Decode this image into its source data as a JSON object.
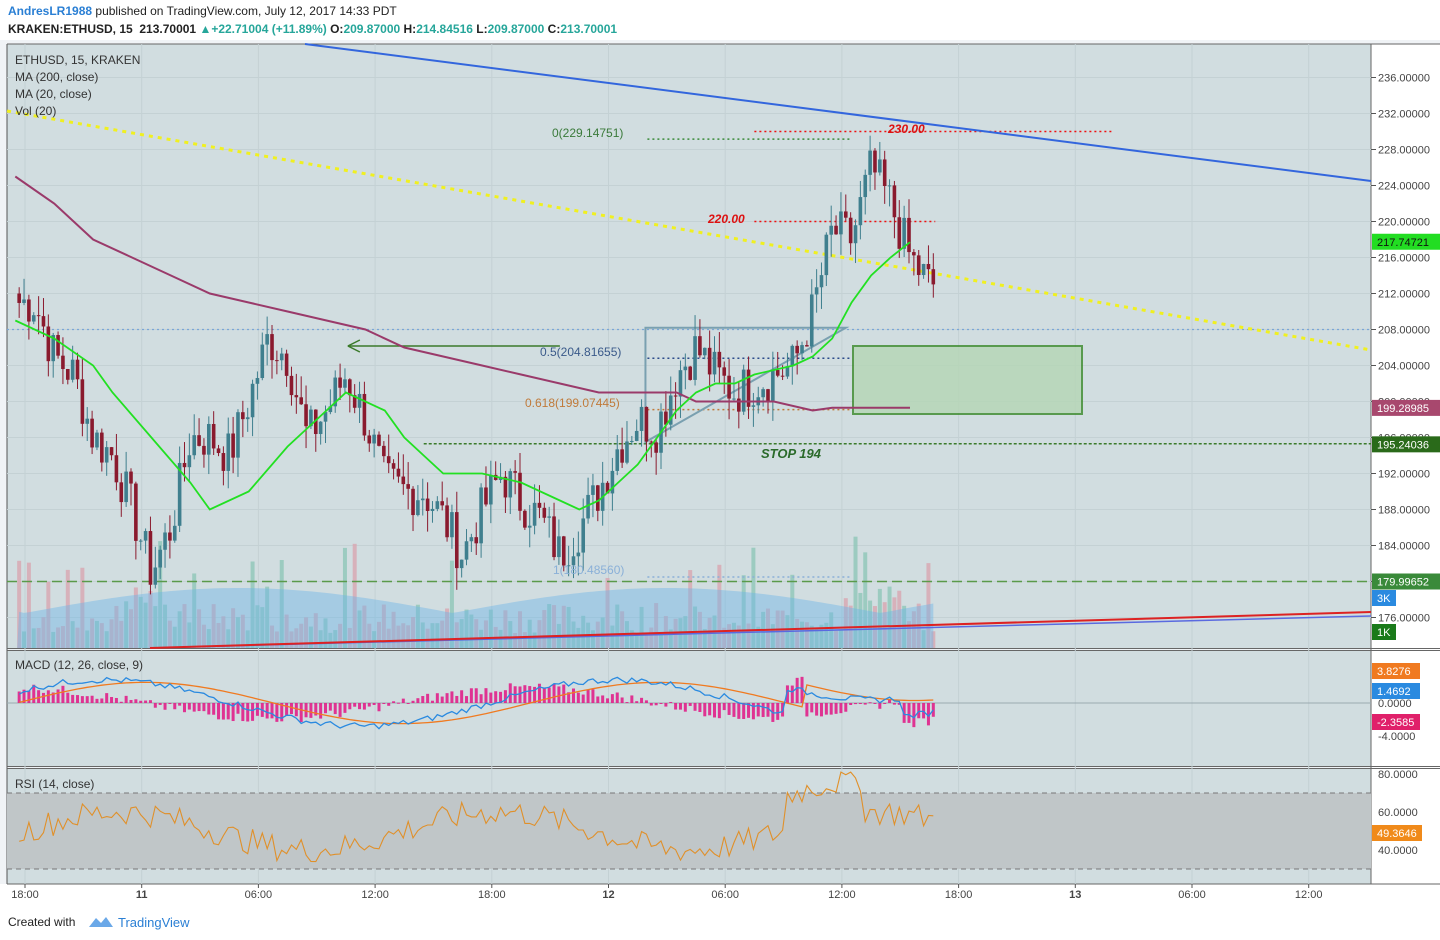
{
  "header": {
    "author": "AndresLR1988",
    "published": "published on TradingView.com, July 12, 2017 14:33 PDT",
    "symbol": "KRAKEN:ETHUSD, 15",
    "last": "213.70001",
    "change": "▲+22.71004 (+11.89%)",
    "o_label": "O:",
    "o": "209.87000",
    "h_label": "H:",
    "h": "214.84516",
    "l_label": "L:",
    "l": "209.87000",
    "c_label": "C:",
    "c": "213.70001"
  },
  "legend": {
    "symbol": "ETHUSD, 15, KRAKEN",
    "ma200": "MA (200, close)",
    "ma20": "MA (20, close)",
    "vol": "Vol (20)",
    "macd": "MACD (12, 26, close, 9)",
    "rsi": "RSI (14, close)"
  },
  "chart_data": [
    {
      "type": "candlestick",
      "title": "ETHUSD, 15, KRAKEN",
      "ylim": [
        172,
        238
      ],
      "y_ticks": [
        "236.00000",
        "232.00000",
        "228.00000",
        "224.00000",
        "220.00000",
        "216.00000",
        "212.00000",
        "208.00000",
        "204.00000",
        "200.00000",
        "196.00000",
        "192.00000",
        "188.00000",
        "184.00000",
        "180.00000",
        "176.00000"
      ],
      "x_ticks": [
        "18:00",
        "11",
        "06:00",
        "12:00",
        "18:00",
        "12",
        "06:00",
        "12:00",
        "18:00",
        "13",
        "06:00",
        "12:00"
      ],
      "x_tick_hours": [
        0,
        6,
        12,
        18,
        24,
        30,
        36,
        42,
        48,
        54,
        60,
        66
      ],
      "close_path": [
        [
          0.5,
          211
        ],
        [
          1.5,
          205
        ],
        [
          2.5,
          203
        ],
        [
          3.5,
          196
        ],
        [
          4.5,
          194
        ],
        [
          5.5,
          188
        ],
        [
          6.5,
          181
        ],
        [
          7.5,
          186
        ],
        [
          8.5,
          196
        ],
        [
          9.5,
          196
        ],
        [
          10.5,
          194
        ],
        [
          11.5,
          200
        ],
        [
          12.5,
          207
        ],
        [
          13.5,
          205
        ],
        [
          14.5,
          196
        ],
        [
          15.5,
          199
        ],
        [
          16.5,
          203
        ],
        [
          17.5,
          198
        ],
        [
          18.5,
          191
        ],
        [
          19.5,
          190
        ],
        [
          20.5,
          190
        ],
        [
          21.5,
          187
        ],
        [
          22.5,
          183
        ],
        [
          23.5,
          188
        ],
        [
          24.5,
          192
        ],
        [
          25.5,
          189
        ],
        [
          26.5,
          187
        ],
        [
          27.5,
          183
        ],
        [
          28.5,
          186
        ],
        [
          29.5,
          190
        ],
        [
          30.5,
          195
        ],
        [
          31.5,
          198
        ],
        [
          32.5,
          197
        ],
        [
          33.5,
          203
        ],
        [
          34.5,
          206
        ],
        [
          35.5,
          203
        ],
        [
          36.5,
          201
        ],
        [
          37.5,
          202
        ],
        [
          38.5,
          203
        ],
        [
          39.5,
          204
        ],
        [
          40.5,
          210
        ],
        [
          41.5,
          219
        ],
        [
          42.5,
          218
        ],
        [
          43.5,
          226
        ],
        [
          44.5,
          222
        ],
        [
          45.5,
          216
        ],
        [
          46.5,
          213
        ]
      ],
      "ma200_path": [
        [
          -0.5,
          225
        ],
        [
          1.5,
          222
        ],
        [
          3.5,
          218
        ],
        [
          5.5,
          216
        ],
        [
          7.5,
          214
        ],
        [
          9.5,
          212
        ],
        [
          11.5,
          211
        ],
        [
          13.5,
          210
        ],
        [
          15.5,
          209
        ],
        [
          17.5,
          208
        ],
        [
          19.5,
          206
        ],
        [
          21.5,
          205
        ],
        [
          23.5,
          204
        ],
        [
          25.5,
          203
        ],
        [
          27.5,
          202
        ],
        [
          29.5,
          201
        ],
        [
          31.5,
          201
        ],
        [
          33.5,
          201
        ],
        [
          34.5,
          200
        ],
        [
          36.5,
          200
        ],
        [
          38.5,
          200
        ],
        [
          40.5,
          199
        ],
        [
          41.5,
          199.3
        ],
        [
          43.5,
          199.3
        ],
        [
          45.5,
          199.3
        ]
      ],
      "ma20_path": [
        [
          -0.5,
          209
        ],
        [
          1.5,
          207
        ],
        [
          3.5,
          204
        ],
        [
          4.5,
          201
        ],
        [
          6.5,
          196
        ],
        [
          8.5,
          191
        ],
        [
          9.5,
          188
        ],
        [
          11.5,
          190
        ],
        [
          13.5,
          195
        ],
        [
          15.5,
          199
        ],
        [
          16.5,
          201
        ],
        [
          18.5,
          199
        ],
        [
          19.5,
          196
        ],
        [
          20.5,
          194
        ],
        [
          21.5,
          192
        ],
        [
          23.5,
          192
        ],
        [
          25.5,
          191
        ],
        [
          27.5,
          189
        ],
        [
          28.5,
          188
        ],
        [
          29.5,
          189
        ],
        [
          31.5,
          193
        ],
        [
          33.5,
          199
        ],
        [
          34.5,
          201
        ],
        [
          35.5,
          202
        ],
        [
          36.5,
          202
        ],
        [
          37.5,
          203
        ],
        [
          39.5,
          204
        ],
        [
          40.5,
          205
        ],
        [
          41.5,
          207
        ],
        [
          42.5,
          211
        ],
        [
          43.5,
          214
        ],
        [
          44.5,
          216
        ],
        [
          45.5,
          217.7
        ]
      ],
      "annotations": {
        "fib_0": "0(229.14751)",
        "fib_05": "0.5(204.81655)",
        "fib_0618": "0.618(199.07445)",
        "fib_1": "1(180.48560)",
        "level_230": "230.00",
        "level_220": "220.00",
        "stop": "STOP 194"
      },
      "price_badges": [
        "217.74721",
        "199.28985",
        "195.24036",
        "179.99652",
        "3K",
        "1K"
      ]
    },
    {
      "type": "bar",
      "title": "MACD (12, 26, close, 9)",
      "y_ticks": [
        "0.0000",
        "-4.0000"
      ],
      "badges": [
        "3.8276",
        "1.4692",
        "-2.3585"
      ]
    },
    {
      "type": "line",
      "title": "RSI (14, close)",
      "y_ticks": [
        "80.0000",
        "60.0000",
        "40.0000"
      ],
      "badges": [
        "49.3646"
      ]
    }
  ],
  "footer": {
    "created": "Created with",
    "brand": "TradingView"
  },
  "colors": {
    "plot_bg": "#d1dde0",
    "up": "#3f7f8e",
    "down": "#8a1a2e",
    "ma20": "#22e022",
    "ma200": "#9a3a6a",
    "trend_blue": "#3366dd",
    "trend_red": "#dd2222",
    "yellow": "#f0f020",
    "fib_green": "#3a8a3a"
  }
}
